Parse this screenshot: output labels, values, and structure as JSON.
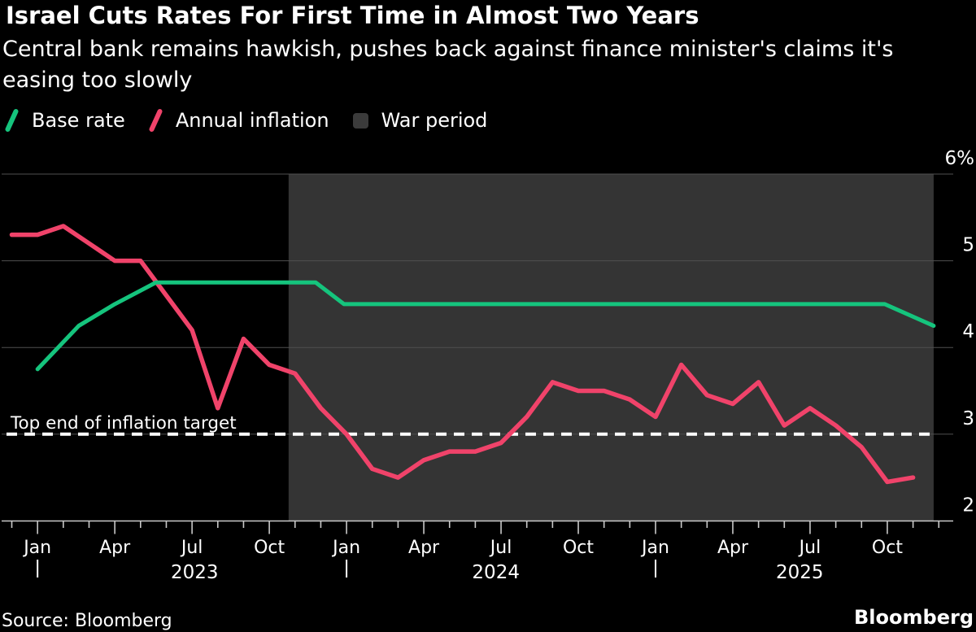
{
  "header": {
    "title": "Israel Cuts Rates For First Time in Almost Two Years",
    "subtitle_lines": [
      "Central bank remains hawkish, pushes back against finance minister's claims it's",
      "easing too slowly"
    ]
  },
  "legend": [
    {
      "label": "Base rate",
      "swatch": "line",
      "color": "#15c47d"
    },
    {
      "label": "Annual inflation",
      "swatch": "line",
      "color": "#f0436a"
    },
    {
      "label": "War period",
      "swatch": "box",
      "color": "#3b3b3b"
    }
  ],
  "colors": {
    "background": "#000000",
    "text": "#ffffff",
    "base_rate": "#15c47d",
    "inflation": "#f0436a",
    "war_shading": "#343434",
    "legend_box": "#3b3b3b",
    "gridline": "#4f4f4f",
    "axis": "#c9c9c9",
    "target_line": "#ffffff"
  },
  "chart_data": {
    "type": "line",
    "x_unit": "months, index 0 = Dec 2022, through index 35 = Nov 2025",
    "ylim": [
      2,
      6
    ],
    "grid": "horizontal",
    "legend_position": "top-left",
    "y_ticks": [
      {
        "value": 6,
        "label": "6%"
      },
      {
        "value": 5,
        "label": "5"
      },
      {
        "value": 4,
        "label": "4"
      },
      {
        "value": 3,
        "label": "3"
      },
      {
        "value": 2,
        "label": "2"
      }
    ],
    "x_major_ticks": [
      {
        "label": "Jan",
        "m": 1
      },
      {
        "label": "Apr",
        "m": 4
      },
      {
        "label": "Jul",
        "m": 7
      },
      {
        "label": "Oct",
        "m": 10
      },
      {
        "label": "Jan",
        "m": 13
      },
      {
        "label": "Apr",
        "m": 16
      },
      {
        "label": "Jul",
        "m": 19
      },
      {
        "label": "Oct",
        "m": 22
      },
      {
        "label": "Jan",
        "m": 25
      },
      {
        "label": "Apr",
        "m": 28
      },
      {
        "label": "Jul",
        "m": 31
      },
      {
        "label": "Oct",
        "m": 34
      }
    ],
    "year_labels": [
      {
        "label": "2023",
        "m": 7.1
      },
      {
        "label": "2024",
        "m": 18.8
      },
      {
        "label": "2025",
        "m": 30.6
      }
    ],
    "year_start_markers_m": [
      1,
      13,
      25
    ],
    "target_line": {
      "value": 3,
      "label": "Top end of inflation target"
    },
    "war_period": {
      "label": "War period",
      "start_m": 10.75,
      "end_m": 35.8
    },
    "series": [
      {
        "name": "Base rate",
        "color": "#15c47d",
        "points": [
          [
            1,
            3.75
          ],
          [
            2.6,
            4.25
          ],
          [
            4,
            4.5
          ],
          [
            5.6,
            4.75
          ],
          [
            11.8,
            4.75
          ],
          [
            12.9,
            4.5
          ],
          [
            33.9,
            4.5
          ],
          [
            35.8,
            4.25
          ]
        ]
      },
      {
        "name": "Annual inflation",
        "color": "#f0436a",
        "start_m": 0,
        "values": [
          5.3,
          5.3,
          5.4,
          5.2,
          5.0,
          5.0,
          4.6,
          4.2,
          3.3,
          4.1,
          3.8,
          3.7,
          3.3,
          3.0,
          2.6,
          2.5,
          2.7,
          2.8,
          2.8,
          2.9,
          3.2,
          3.6,
          3.5,
          3.5,
          3.4,
          3.2,
          3.8,
          3.45,
          3.35,
          3.6,
          3.1,
          3.3,
          3.1,
          2.85,
          2.45,
          2.5
        ]
      }
    ]
  },
  "footer": {
    "source": "Source: Bloomberg",
    "brand": "Bloomberg"
  }
}
